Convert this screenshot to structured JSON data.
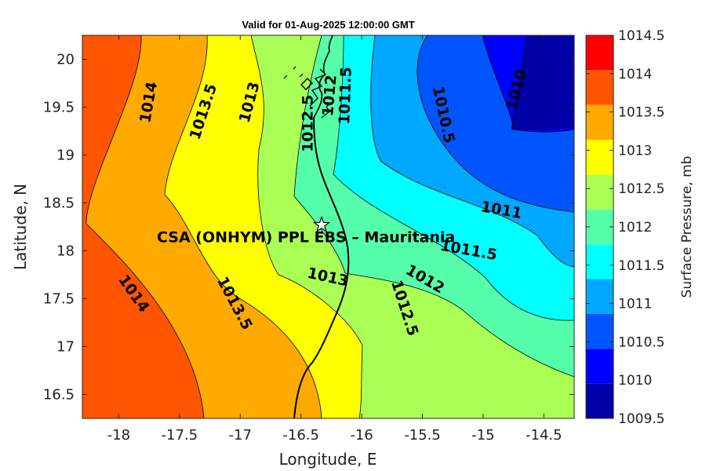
{
  "title": "Valid for 01-Aug-2025 12:00:00 GMT",
  "x_axis": {
    "label": "Longitude, E",
    "range": [
      -18.3,
      -14.25
    ],
    "ticks": [
      -18,
      -17.5,
      -17,
      -16.5,
      -16,
      -15.5,
      -15,
      -14.5
    ],
    "tick_labels": [
      "-18",
      "-17.5",
      "-17",
      "-16.5",
      "-16",
      "-15.5",
      "-15",
      "-14.5"
    ]
  },
  "y_axis": {
    "label": "Latitude, N",
    "range": [
      16.25,
      20.25
    ],
    "ticks": [
      16.5,
      17,
      17.5,
      18,
      18.5,
      19,
      19.5,
      20
    ],
    "tick_labels": [
      "16.5",
      "17",
      "17.5",
      "18",
      "18.5",
      "19",
      "19.5",
      "20"
    ]
  },
  "colorbar": {
    "label": "Surface Pressure, mb",
    "levels": [
      "1009.5",
      "1010",
      "1010.5",
      "1011",
      "1011.5",
      "1012",
      "1012.5",
      "1013",
      "1013.5",
      "1014",
      "1014.5"
    ],
    "colors": [
      "#0000a8",
      "#0000ff",
      "#0055ff",
      "#00a8ff",
      "#00ffff",
      "#55ffaa",
      "#aaff55",
      "#ffff00",
      "#ffaa00",
      "#ff5500",
      "#ff0000"
    ]
  },
  "contour_labels": [
    {
      "text": "1014",
      "lon": -17.75,
      "lat": 19.55,
      "angle": -80
    },
    {
      "text": "1013.5",
      "lon": -17.3,
      "lat": 19.45,
      "angle": -72
    },
    {
      "text": "1013",
      "lon": -16.92,
      "lat": 19.55,
      "angle": -75
    },
    {
      "text": "1012.5",
      "lon": -16.44,
      "lat": 19.33,
      "angle": -90
    },
    {
      "text": "1012",
      "lon": -16.26,
      "lat": 19.62,
      "angle": -85
    },
    {
      "text": "1011.5",
      "lon": -16.13,
      "lat": 19.62,
      "angle": -88
    },
    {
      "text": "1010.5",
      "lon": -15.33,
      "lat": 19.42,
      "angle": 78
    },
    {
      "text": "1010",
      "lon": -14.72,
      "lat": 19.68,
      "angle": -75
    },
    {
      "text": "1011",
      "lon": -14.85,
      "lat": 18.42,
      "angle": 10
    },
    {
      "text": "1011.5",
      "lon": -15.12,
      "lat": 18.0,
      "angle": 10
    },
    {
      "text": "1012",
      "lon": -15.48,
      "lat": 17.7,
      "angle": 30
    },
    {
      "text": "1012.5",
      "lon": -15.65,
      "lat": 17.4,
      "angle": 72
    },
    {
      "text": "1013",
      "lon": -16.28,
      "lat": 17.72,
      "angle": 12
    },
    {
      "text": "1013.5",
      "lon": -17.05,
      "lat": 17.45,
      "angle": 62
    },
    {
      "text": "1014",
      "lon": -17.88,
      "lat": 17.55,
      "angle": 55
    }
  ],
  "site": {
    "label": "CSA (ONHYM) PPL EBS  – Mauritania",
    "lon": -16.33,
    "lat": 18.27
  }
}
